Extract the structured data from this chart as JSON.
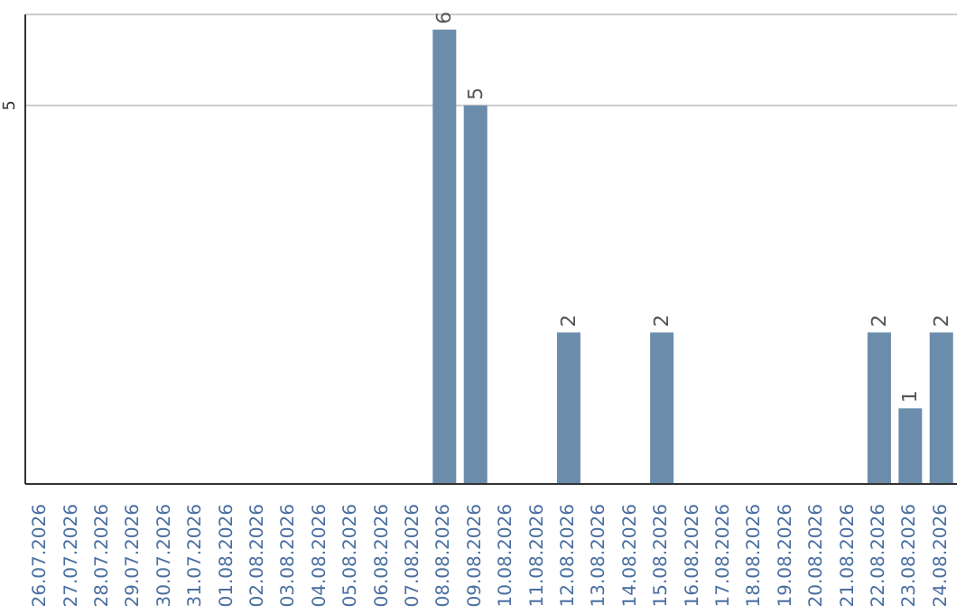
{
  "chart_data": {
    "type": "bar",
    "categories": [
      "26.07.2026",
      "27.07.2026",
      "28.07.2026",
      "29.07.2026",
      "30.07.2026",
      "31.07.2026",
      "01.08.2026",
      "02.08.2026",
      "03.08.2026",
      "04.08.2026",
      "05.08.2026",
      "06.08.2026",
      "07.08.2026",
      "08.08.2026",
      "09.08.2026",
      "10.08.2026",
      "11.08.2026",
      "12.08.2026",
      "13.08.2026",
      "14.08.2026",
      "15.08.2026",
      "16.08.2026",
      "17.08.2026",
      "18.08.2026",
      "19.08.2026",
      "20.08.2026",
      "21.08.2026",
      "22.08.2026",
      "23.08.2026",
      "24.08.2026"
    ],
    "values": [
      null,
      null,
      null,
      null,
      null,
      null,
      null,
      null,
      null,
      null,
      null,
      null,
      null,
      6,
      5,
      null,
      null,
      2,
      null,
      null,
      2,
      null,
      null,
      null,
      null,
      null,
      null,
      2,
      1,
      2
    ],
    "data_labels": true,
    "color": "#6b8cab",
    "ylim": [
      0,
      6.2
    ],
    "yticks": [
      5
    ],
    "grid": "y"
  }
}
